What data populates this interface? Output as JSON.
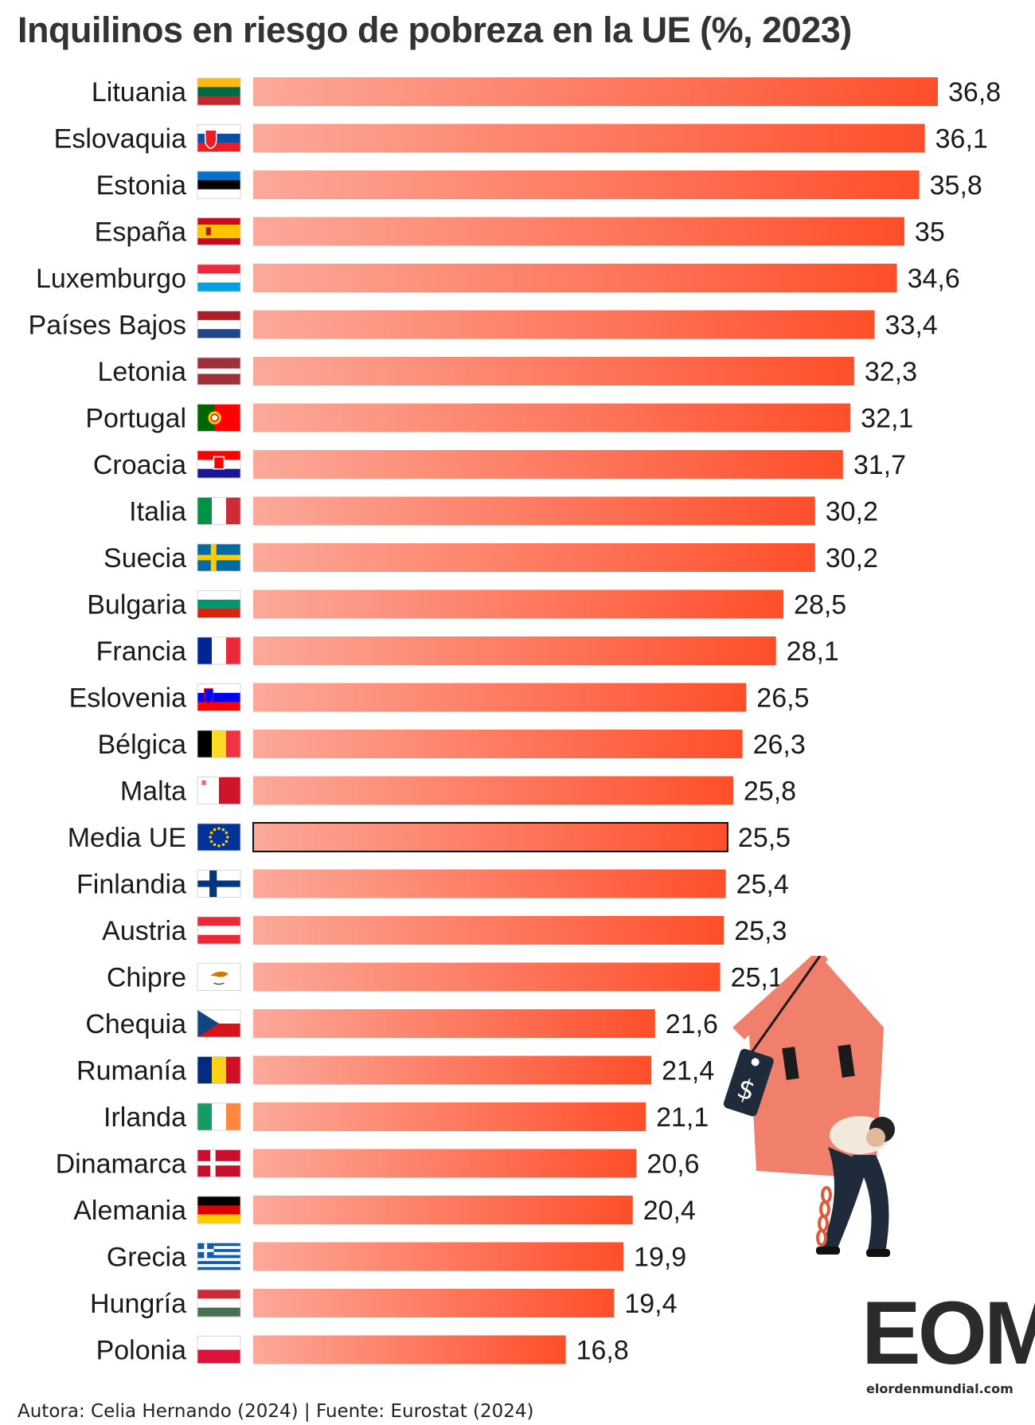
{
  "chart_data": {
    "type": "bar",
    "orientation": "horizontal",
    "title": "Inquilinos en riesgo de pobreza en la UE (%, 2023)",
    "categories": [
      "Lituania",
      "Eslovaquia",
      "Estonia",
      "España",
      "Luxemburgo",
      "Países Bajos",
      "Letonia",
      "Portugal",
      "Croacia",
      "Italia",
      "Suecia",
      "Bulgaria",
      "Francia",
      "Eslovenia",
      "Bélgica",
      "Malta",
      "Media UE",
      "Finlandia",
      "Austria",
      "Chipre",
      "Chequia",
      "Rumanía",
      "Irlanda",
      "Dinamarca",
      "Alemania",
      "Grecia",
      "Hungría",
      "Polonia"
    ],
    "values": [
      36.8,
      36.1,
      35.8,
      35,
      34.6,
      33.4,
      32.3,
      32.1,
      31.7,
      30.2,
      30.2,
      28.5,
      28.1,
      26.5,
      26.3,
      25.8,
      25.5,
      25.4,
      25.3,
      25.1,
      21.6,
      21.4,
      21.1,
      20.6,
      20.4,
      19.9,
      19.4,
      16.8
    ],
    "value_labels": [
      "36,8",
      "36,1",
      "35,8",
      "35",
      "34,6",
      "33,4",
      "32,3",
      "32,1",
      "31,7",
      "30,2",
      "30,2",
      "28,5",
      "28,1",
      "26,5",
      "26,3",
      "25,8",
      "25,5",
      "25,4",
      "25,3",
      "25,1",
      "21,6",
      "21,4",
      "21,1",
      "20,6",
      "20,4",
      "19,9",
      "19,4",
      "16,8"
    ],
    "flags": [
      "lt",
      "sk",
      "ee",
      "es",
      "lu",
      "nl",
      "lv",
      "pt",
      "hr",
      "it",
      "se",
      "bg",
      "fr",
      "si",
      "be",
      "mt",
      "eu",
      "fi",
      "at",
      "cy",
      "cz",
      "ro",
      "ie",
      "dk",
      "de",
      "gr",
      "hu",
      "pl"
    ],
    "highlight": "Media UE",
    "xlim": [
      0,
      36.8
    ],
    "grid": false,
    "legend": "none",
    "colors": {
      "bar_start": "#fca99a",
      "bar_end": "#ff4e2a",
      "highlight_outline": "#111111"
    }
  },
  "footer": "Autora: Celia Hernando (2024) | Fuente: Eurostat (2024)",
  "logo": {
    "letters": "EOM",
    "url": "elordenmundial.com",
    "icon": "eom-logo"
  },
  "illustration": {
    "icon": "man-carrying-house-icon",
    "price_tag": "$"
  }
}
